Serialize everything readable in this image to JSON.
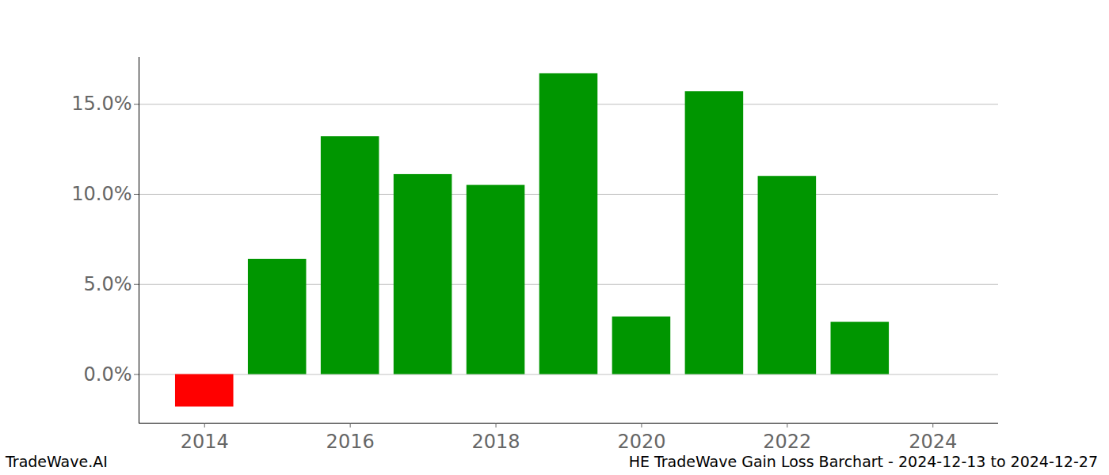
{
  "chart_data": {
    "type": "bar",
    "title": "HE TradeWave Gain Loss Barchart - 2024-12-13 to 2024-12-27",
    "annotations": [
      "TradeWave.AI"
    ],
    "x": [
      2014,
      2015,
      2016,
      2017,
      2018,
      2019,
      2020,
      2021,
      2022,
      2023
    ],
    "values": [
      -1.8,
      6.4,
      13.2,
      11.1,
      10.5,
      16.7,
      3.2,
      15.7,
      11.0,
      2.9
    ],
    "colors": [
      "#ff0000",
      "#009600",
      "#009600",
      "#009600",
      "#009600",
      "#009600",
      "#009600",
      "#009600",
      "#009600",
      "#009600"
    ],
    "xlim": [
      2013.1,
      2024.9
    ],
    "xticks": [
      2014,
      2016,
      2018,
      2020,
      2022,
      2024
    ],
    "ylim": [
      -2.7,
      17.6
    ],
    "yticks": [
      {
        "value": 0,
        "label": "0.0%"
      },
      {
        "value": 5,
        "label": "5.0%"
      },
      {
        "value": 10,
        "label": "10.0%"
      },
      {
        "value": 15,
        "label": "15.0%"
      }
    ],
    "grid": true
  }
}
